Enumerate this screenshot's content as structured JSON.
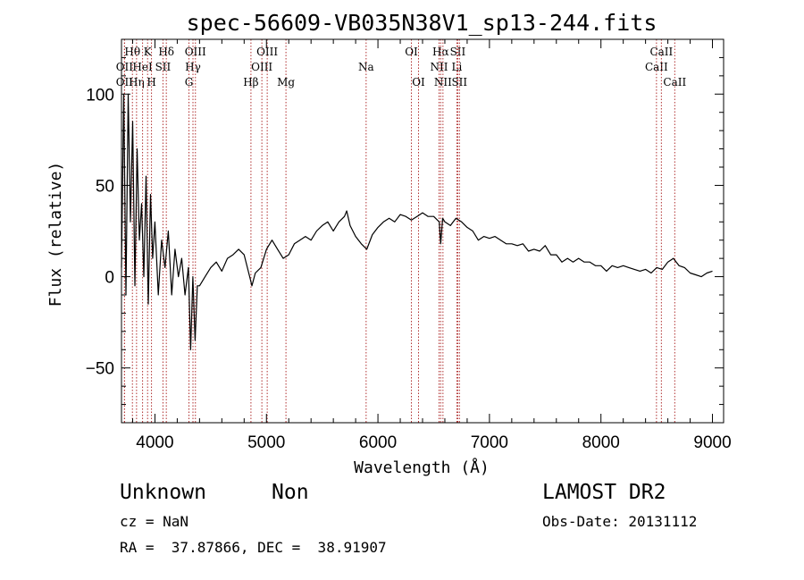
{
  "chart_data": {
    "type": "line",
    "title": "spec-56609-VB035N38V1_sp13-244.fits",
    "xlabel": "Wavelength (Å)",
    "ylabel": "Flux (relative)",
    "xlim": [
      3700,
      9100
    ],
    "ylim": [
      -80,
      130
    ],
    "x_ticks": [
      4000,
      5000,
      6000,
      7000,
      8000,
      9000
    ],
    "y_ticks": [
      -50,
      0,
      50,
      100
    ],
    "grid": false,
    "series": [
      {
        "color": "#000000",
        "x": [
          3700,
          3720,
          3740,
          3760,
          3780,
          3800,
          3820,
          3840,
          3860,
          3880,
          3900,
          3920,
          3940,
          3960,
          3980,
          4000,
          4030,
          4060,
          4090,
          4120,
          4150,
          4180,
          4210,
          4240,
          4270,
          4300,
          4320,
          4340,
          4360,
          4380,
          4400,
          4450,
          4500,
          4550,
          4600,
          4650,
          4700,
          4750,
          4800,
          4850,
          4870,
          4900,
          4950,
          5000,
          5050,
          5100,
          5150,
          5200,
          5250,
          5300,
          5350,
          5400,
          5450,
          5500,
          5550,
          5600,
          5650,
          5700,
          5720,
          5750,
          5800,
          5850,
          5900,
          5950,
          6000,
          6050,
          6100,
          6150,
          6200,
          6250,
          6300,
          6350,
          6400,
          6450,
          6500,
          6550,
          6563,
          6580,
          6600,
          6650,
          6700,
          6750,
          6800,
          6850,
          6900,
          6950,
          7000,
          7050,
          7100,
          7150,
          7200,
          7250,
          7300,
          7350,
          7400,
          7450,
          7500,
          7550,
          7600,
          7650,
          7700,
          7750,
          7800,
          7850,
          7900,
          7950,
          8000,
          8050,
          8100,
          8150,
          8200,
          8250,
          8300,
          8350,
          8400,
          8450,
          8500,
          8550,
          8600,
          8650,
          8700,
          8750,
          8800,
          8850,
          8900,
          8950,
          9000
        ],
        "y": [
          5,
          100,
          -10,
          100,
          30,
          85,
          -5,
          70,
          20,
          40,
          0,
          55,
          -15,
          45,
          10,
          30,
          -10,
          20,
          5,
          25,
          -10,
          15,
          0,
          10,
          -10,
          5,
          -40,
          0,
          -35,
          -5,
          -5,
          0,
          5,
          8,
          3,
          10,
          12,
          15,
          12,
          0,
          -5,
          2,
          5,
          15,
          20,
          15,
          10,
          12,
          18,
          20,
          22,
          20,
          25,
          28,
          30,
          25,
          30,
          33,
          36,
          28,
          22,
          18,
          15,
          23,
          27,
          30,
          32,
          30,
          34,
          33,
          31,
          33,
          35,
          33,
          33,
          30,
          18,
          32,
          30,
          28,
          32,
          30,
          27,
          25,
          20,
          22,
          21,
          22,
          20,
          18,
          18,
          17,
          18,
          14,
          15,
          14,
          17,
          12,
          12,
          8,
          10,
          8,
          10,
          8,
          8,
          6,
          6,
          3,
          6,
          5,
          6,
          5,
          4,
          3,
          4,
          2,
          5,
          4,
          8,
          10,
          6,
          5,
          2,
          1,
          0,
          2,
          3
        ]
      }
    ],
    "emission_lines": [
      {
        "label": "OII",
        "wavelength": 3727,
        "row": 2
      },
      {
        "label": "Hθ",
        "wavelength": 3798,
        "row": 1
      },
      {
        "label": "OII",
        "wavelength": 3727,
        "row": 3
      },
      {
        "label": "Hη",
        "wavelength": 3835,
        "row": 3
      },
      {
        "label": "HeI",
        "wavelength": 3889,
        "row": 2
      },
      {
        "label": "K",
        "wavelength": 3934,
        "row": 1
      },
      {
        "label": "H",
        "wavelength": 3969,
        "row": 3
      },
      {
        "label": "SII",
        "wavelength": 4072,
        "row": 2
      },
      {
        "label": "Hδ",
        "wavelength": 4102,
        "row": 1
      },
      {
        "label": "G",
        "wavelength": 4305,
        "row": 3
      },
      {
        "label": "Hγ",
        "wavelength": 4341,
        "row": 2
      },
      {
        "label": "OIII",
        "wavelength": 4363,
        "row": 1
      },
      {
        "label": "Hβ",
        "wavelength": 4861,
        "row": 3
      },
      {
        "label": "OIII",
        "wavelength": 4959,
        "row": 2
      },
      {
        "label": "OIII",
        "wavelength": 5007,
        "row": 1
      },
      {
        "label": "Mg",
        "wavelength": 5175,
        "row": 3
      },
      {
        "label": "Na",
        "wavelength": 5894,
        "row": 2
      },
      {
        "label": "OI",
        "wavelength": 6300,
        "row": 1
      },
      {
        "label": "OI",
        "wavelength": 6364,
        "row": 3
      },
      {
        "label": "NII",
        "wavelength": 6548,
        "row": 2
      },
      {
        "label": "Hα",
        "wavelength": 6563,
        "row": 1
      },
      {
        "label": "NII",
        "wavelength": 6583,
        "row": 3
      },
      {
        "label": "SII",
        "wavelength": 6716,
        "row": 1
      },
      {
        "label": "Li",
        "wavelength": 6708,
        "row": 2
      },
      {
        "label": "SII",
        "wavelength": 6731,
        "row": 3
      },
      {
        "label": "CaII",
        "wavelength": 8498,
        "row": 2
      },
      {
        "label": "CaII",
        "wavelength": 8542,
        "row": 1
      },
      {
        "label": "CaII",
        "wavelength": 8662,
        "row": 3
      }
    ]
  },
  "info": {
    "class": "Unknown",
    "subclass": "Non",
    "survey": "LAMOST DR2",
    "cz": "cz = NaN",
    "obs_date": "Obs-Date: 20131112",
    "coords": "RA =  37.87866, DEC =  38.91907"
  },
  "colors": {
    "line_marker": "#b03030",
    "spectrum": "#000000"
  }
}
